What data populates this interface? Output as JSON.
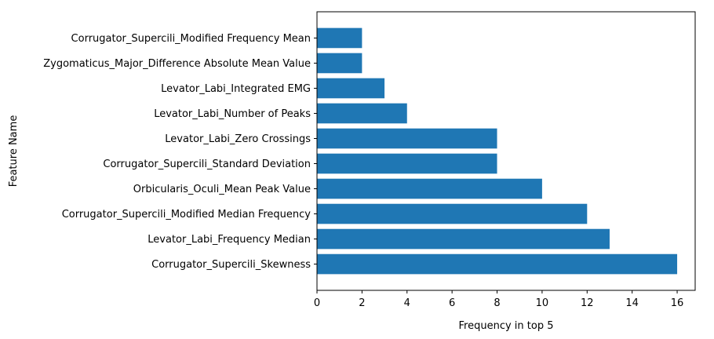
{
  "chart_data": {
    "type": "bar",
    "orientation": "horizontal",
    "categories": [
      "Corrugator_Supercili_Skewness",
      "Levator_Labi_Frequency Median",
      "Corrugator_Supercili_Modified Median Frequency",
      "Orbicularis_Oculi_Mean Peak Value",
      "Corrugator_Supercili_Standard Deviation",
      "Levator_Labi_Zero Crossings",
      "Levator_Labi_Number of Peaks",
      "Levator_Labi_Integrated EMG",
      "Zygomaticus_Major_Difference Absolute Mean Value",
      "Corrugator_Supercili_Modified Frequency Mean"
    ],
    "values": [
      16,
      13,
      12,
      10,
      8,
      8,
      4,
      3,
      2,
      2
    ],
    "xlabel": "Frequency in top 5",
    "ylabel": "Feature Name",
    "xlim": [
      0,
      16.8
    ],
    "xticks": [
      0,
      2,
      4,
      6,
      8,
      10,
      12,
      14,
      16
    ],
    "grid": false,
    "bar_color": "#1f77b4"
  }
}
